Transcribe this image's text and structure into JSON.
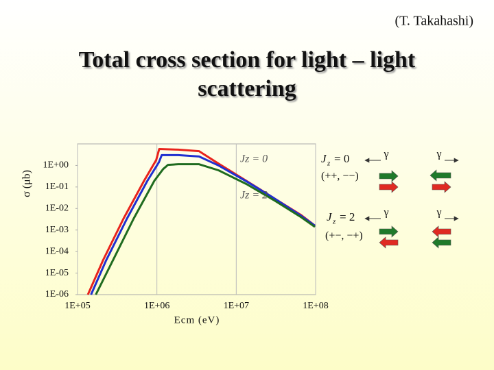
{
  "credit": "(T. Takahashi)",
  "chart_data": {
    "type": "line",
    "title": "Total cross section for light – light scattering",
    "xlabel": "Ecm (eV)",
    "ylabel": "σ (μb)",
    "xscale": "log",
    "yscale": "log",
    "xlim": [
      100000,
      100000000
    ],
    "ylim": [
      1e-06,
      10
    ],
    "xticks": [
      {
        "value": 100000,
        "label": "1E+05"
      },
      {
        "value": 1000000,
        "label": "1E+06"
      },
      {
        "value": 10000000,
        "label": "1E+07"
      },
      {
        "value": 100000000,
        "label": "1E+08"
      }
    ],
    "yticks": [
      {
        "value": 1,
        "label": "1E+00"
      },
      {
        "value": 0.1,
        "label": "1E-01"
      },
      {
        "value": 0.01,
        "label": "1E-02"
      },
      {
        "value": 0.001,
        "label": "1E-03"
      },
      {
        "value": 0.0001,
        "label": "1E-04"
      },
      {
        "value": 1e-05,
        "label": "1E-05"
      },
      {
        "value": 1e-06,
        "label": "1E-06"
      }
    ],
    "grid": "x",
    "annotations": [
      "Jz = 0",
      "Jz = 2"
    ],
    "series": [
      {
        "color": "#e8231c",
        "x": [
          135000,
          210000,
          380000,
          690000,
          980000,
          1070000,
          1860000,
          3400000,
          6000000,
          13500000,
          29500000,
          66000000,
          98000000
        ],
        "values": [
          1e-06,
          4e-05,
          0.0034,
          0.195,
          1.78,
          5.8,
          5.4,
          4.6,
          1.2,
          0.19,
          0.031,
          0.0049,
          0.0016
        ]
      },
      {
        "color": "#1f2fd0",
        "x": [
          148000,
          230000,
          420000,
          760000,
          1060000,
          1150000,
          1860000,
          3400000,
          6000000,
          13500000,
          29500000,
          66000000,
          98000000
        ],
        "values": [
          1e-06,
          4e-05,
          0.0034,
          0.195,
          1.4,
          3.0,
          3.0,
          2.6,
          0.99,
          0.18,
          0.031,
          0.0045,
          0.0016
        ]
      },
      {
        "color": "#1f6b1f",
        "x": [
          170000,
          280000,
          510000,
          930000,
          1200000,
          1380000,
          1860000,
          3400000,
          6000000,
          13500000,
          29500000,
          66000000,
          98000000
        ],
        "values": [
          1e-06,
          4e-05,
          0.0034,
          0.195,
          0.68,
          1.06,
          1.14,
          1.14,
          0.59,
          0.135,
          0.025,
          0.0039,
          0.0014
        ]
      }
    ]
  },
  "diagram": {
    "jz0": {
      "symbol": "J",
      "subscript": "z",
      "equals": "= 0",
      "helicity": "(++, −−)"
    },
    "jz2": {
      "symbol": "J",
      "subscript": "z",
      "equals": "= 2",
      "helicity": "(+−, −+)"
    },
    "photons": [
      "γ",
      "γ",
      "γ",
      "γ"
    ]
  }
}
